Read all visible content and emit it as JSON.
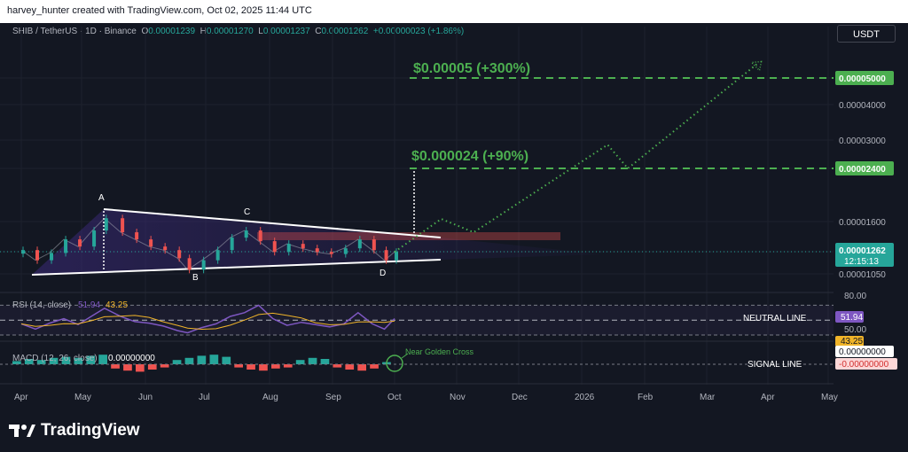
{
  "header": {
    "caption": "harvey_hunter created with TradingView.com, Oct 02, 2025 11:44 UTC"
  },
  "brand": {
    "name": "TradingView"
  },
  "toolbar": {
    "currency": "USDT"
  },
  "legend": {
    "symbol": "SHIB / TetherUS · 1D · Binance",
    "o_key": "O",
    "o": "0.00001239",
    "h_key": "H",
    "h": "0.00001270",
    "l_key": "L",
    "l": "0.00001237",
    "c_key": "C",
    "c": "0.00001262",
    "change": "+0.00000023 (+1.86%)"
  },
  "colors": {
    "up": "#26a69a",
    "down": "#ef5350",
    "projection": "#4caf50",
    "rsi": "#7e57c2",
    "rsi_ma": "#f0b429"
  },
  "chart_data": {
    "type": "line",
    "title": "SHIB / TetherUS · 1D · Binance",
    "x_ticks": [
      "Apr",
      "May",
      "Jun",
      "Jul",
      "Aug",
      "Sep",
      "Oct",
      "Nov",
      "Dec",
      "2026",
      "Feb",
      "Mar",
      "Apr",
      "May"
    ],
    "y_ticks": [
      "0.00005000",
      "0.00004000",
      "0.00003000",
      "0.00002400",
      "0.00001600",
      "0.00001262",
      "0.00001050"
    ],
    "price_series": {
      "name": "SHIB/USDT",
      "dates": [
        "2025-04-01",
        "2025-04-08",
        "2025-04-15",
        "2025-04-22",
        "2025-04-29",
        "2025-05-06",
        "2025-05-12",
        "2025-05-20",
        "2025-05-27",
        "2025-06-03",
        "2025-06-10",
        "2025-06-17",
        "2025-06-22",
        "2025-06-29",
        "2025-07-06",
        "2025-07-13",
        "2025-07-20",
        "2025-07-27",
        "2025-08-03",
        "2025-08-10",
        "2025-08-17",
        "2025-08-24",
        "2025-08-31",
        "2025-09-07",
        "2025-09-14",
        "2025-09-21",
        "2025-09-27",
        "2025-10-02"
      ],
      "values": [
        1.28e-05,
        1.18e-05,
        1.25e-05,
        1.4e-05,
        1.32e-05,
        1.5e-05,
        1.65e-05,
        1.48e-05,
        1.4e-05,
        1.32e-05,
        1.28e-05,
        1.2e-05,
        1.09e-05,
        1.18e-05,
        1.28e-05,
        1.42e-05,
        1.5e-05,
        1.38e-05,
        1.26e-05,
        1.35e-05,
        1.3e-05,
        1.26e-05,
        1.24e-05,
        1.3e-05,
        1.4e-05,
        1.28e-05,
        1.18e-05,
        1.26e-05
      ]
    },
    "projection": {
      "name": "",
      "dates": [
        "2025-10-02",
        "2025-10-25",
        "2025-11-10",
        "2026-01-15",
        "2026-01-25",
        "2026-03-30"
      ],
      "values": [
        1.26e-05,
        1.64e-05,
        1.48e-05,
        2.9e-05,
        2.4e-05,
        5.55e-05
      ]
    },
    "targets": [
      {
        "label": "$0.000024 (+90%)",
        "value": 2.4e-05,
        "axis_label": "0.00002400"
      },
      {
        "label": "$0.00005 (+300%)",
        "value": 5e-05,
        "axis_label": "0.00005000"
      }
    ],
    "current_price": {
      "value": "0.00001262",
      "countdown": "12:15:13"
    },
    "points": [
      "A",
      "B",
      "C",
      "D"
    ],
    "rsi": {
      "label": "RSI (14, close)",
      "value": "51.94",
      "ma": "43.25",
      "values": [
        45,
        38,
        46,
        52,
        44,
        56,
        66,
        55,
        48,
        46,
        42,
        36,
        33,
        40,
        45,
        55,
        60,
        70,
        52,
        43,
        47,
        44,
        41,
        45,
        60,
        45,
        38,
        52
      ],
      "y_ticks": [
        "80.00",
        "50.00"
      ],
      "neutral_label": "NEUTRAL LINE"
    },
    "macd": {
      "label": "MACD (12, 26, close)",
      "value": "0.00000000",
      "axis_labels": [
        "0.00000000",
        "-0.00000000"
      ],
      "histogram": [
        3,
        5,
        4,
        6,
        7,
        6,
        8,
        9,
        -4,
        -6,
        -7,
        -5,
        -3,
        4,
        6,
        8,
        9,
        7,
        -3,
        -5,
        -6,
        -4,
        -3,
        4,
        6,
        5,
        -3,
        -5,
        -6,
        -4,
        2
      ],
      "signal_label": "SIGNAL LINE",
      "annotation": "Near Golden Cross"
    }
  }
}
